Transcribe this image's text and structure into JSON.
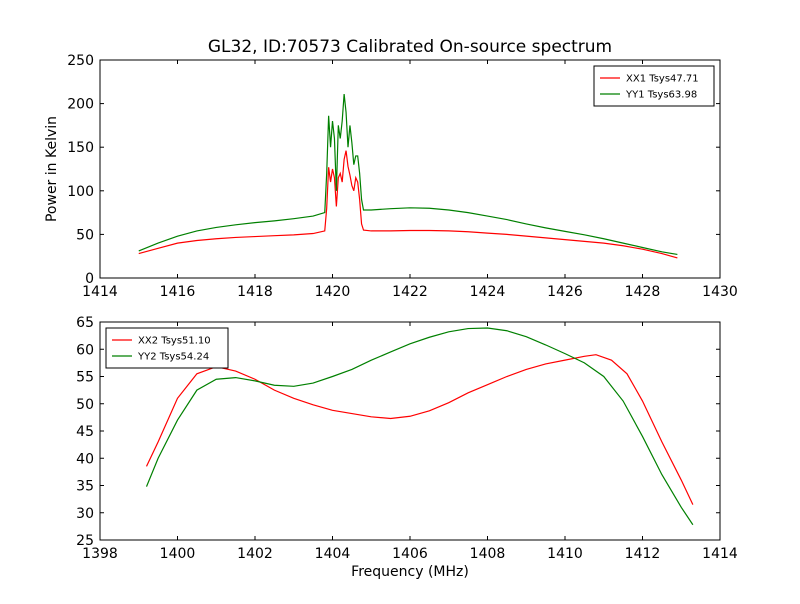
{
  "chart_data": [
    {
      "type": "line",
      "title": "GL32, ID:70573 Calibrated On-source spectrum",
      "xlabel": "",
      "ylabel": "Power in Kelvin",
      "xlim": [
        1414,
        1430
      ],
      "ylim": [
        0,
        250
      ],
      "xticks": [
        1414,
        1416,
        1418,
        1420,
        1422,
        1424,
        1426,
        1428,
        1430
      ],
      "yticks": [
        0,
        50,
        100,
        150,
        200,
        250
      ],
      "legend_position": "top-right",
      "series": [
        {
          "name": "XX1 Tsys47.71",
          "color": "#ff0000",
          "x": [
            1415.0,
            1415.5,
            1416.0,
            1416.5,
            1417.0,
            1417.5,
            1418.0,
            1418.5,
            1419.0,
            1419.5,
            1419.8,
            1419.85,
            1419.9,
            1419.95,
            1420.0,
            1420.05,
            1420.1,
            1420.15,
            1420.2,
            1420.25,
            1420.3,
            1420.35,
            1420.4,
            1420.45,
            1420.5,
            1420.55,
            1420.6,
            1420.65,
            1420.7,
            1420.75,
            1420.8,
            1421.0,
            1421.5,
            1422.0,
            1422.5,
            1423.0,
            1423.5,
            1424.0,
            1424.5,
            1425.0,
            1425.5,
            1426.0,
            1426.5,
            1427.0,
            1427.5,
            1428.0,
            1428.5,
            1428.9
          ],
          "values": [
            28,
            34,
            40,
            43,
            45,
            46.5,
            47.5,
            48.5,
            49.5,
            51,
            54,
            80,
            127,
            110,
            125,
            115,
            82,
            115,
            120,
            110,
            136,
            146,
            128,
            118,
            106,
            100,
            115,
            110,
            90,
            62,
            55,
            54,
            54,
            54.5,
            54.5,
            54,
            53,
            51.5,
            50,
            48,
            46,
            44,
            42,
            40,
            37,
            33,
            28,
            23
          ]
        },
        {
          "name": "YY1 Tsys63.98",
          "color": "#008000",
          "x": [
            1415.0,
            1415.5,
            1416.0,
            1416.5,
            1417.0,
            1417.5,
            1418.0,
            1418.5,
            1419.0,
            1419.5,
            1419.8,
            1419.85,
            1419.9,
            1419.95,
            1420.0,
            1420.05,
            1420.1,
            1420.15,
            1420.2,
            1420.25,
            1420.3,
            1420.35,
            1420.4,
            1420.45,
            1420.5,
            1420.55,
            1420.6,
            1420.65,
            1420.7,
            1420.75,
            1420.8,
            1421.0,
            1421.5,
            1422.0,
            1422.5,
            1423.0,
            1423.5,
            1424.0,
            1424.5,
            1425.0,
            1425.5,
            1426.0,
            1426.5,
            1427.0,
            1427.5,
            1428.0,
            1428.5,
            1428.9
          ],
          "values": [
            31,
            40,
            48,
            54,
            58,
            61,
            63.5,
            65.5,
            68,
            71,
            75,
            120,
            186,
            150,
            180,
            160,
            100,
            175,
            160,
            180,
            211,
            190,
            150,
            175,
            155,
            130,
            140,
            140,
            120,
            90,
            78,
            78,
            79.5,
            80.5,
            80,
            78,
            75,
            71,
            67,
            62,
            57.5,
            53.5,
            49.5,
            45,
            40,
            35,
            30,
            27
          ]
        }
      ]
    },
    {
      "type": "line",
      "title": "",
      "xlabel": "Frequency (MHz)",
      "ylabel": "",
      "xlim": [
        1398,
        1414
      ],
      "ylim": [
        25,
        65
      ],
      "xticks": [
        1398,
        1400,
        1402,
        1404,
        1406,
        1408,
        1410,
        1412,
        1414
      ],
      "yticks": [
        25,
        30,
        35,
        40,
        45,
        50,
        55,
        60,
        65
      ],
      "legend_position": "top-left",
      "series": [
        {
          "name": "XX2 Tsys51.10",
          "color": "#ff0000",
          "x": [
            1399.2,
            1399.5,
            1400.0,
            1400.5,
            1401.0,
            1401.5,
            1402.0,
            1402.5,
            1403.0,
            1403.5,
            1404.0,
            1404.5,
            1405.0,
            1405.5,
            1406.0,
            1406.5,
            1407.0,
            1407.5,
            1408.0,
            1408.5,
            1409.0,
            1409.5,
            1410.0,
            1410.5,
            1410.8,
            1411.2,
            1411.6,
            1412.0,
            1412.5,
            1413.0,
            1413.3
          ],
          "values": [
            38.5,
            43,
            51,
            55.5,
            56.8,
            56,
            54.5,
            52.5,
            51,
            49.8,
            48.8,
            48.2,
            47.6,
            47.3,
            47.7,
            48.7,
            50.2,
            52,
            53.5,
            55,
            56.3,
            57.3,
            58,
            58.7,
            59,
            58,
            55.5,
            50.5,
            43,
            36,
            31.5
          ]
        },
        {
          "name": "YY2 Tsys54.24",
          "color": "#008000",
          "x": [
            1399.2,
            1399.5,
            1400.0,
            1400.5,
            1401.0,
            1401.5,
            1402.0,
            1402.5,
            1403.0,
            1403.5,
            1404.0,
            1404.5,
            1405.0,
            1405.5,
            1406.0,
            1406.5,
            1407.0,
            1407.5,
            1408.0,
            1408.5,
            1409.0,
            1409.5,
            1410.0,
            1410.5,
            1411.0,
            1411.5,
            1412.0,
            1412.5,
            1413.0,
            1413.3
          ],
          "values": [
            34.8,
            40,
            47,
            52.5,
            54.5,
            54.8,
            54.2,
            53.4,
            53.2,
            53.8,
            55,
            56.3,
            58,
            59.5,
            61,
            62.2,
            63.2,
            63.8,
            63.9,
            63.4,
            62.3,
            60.8,
            59.2,
            57.5,
            55,
            50.5,
            44,
            37,
            31,
            27.8
          ]
        }
      ]
    }
  ]
}
